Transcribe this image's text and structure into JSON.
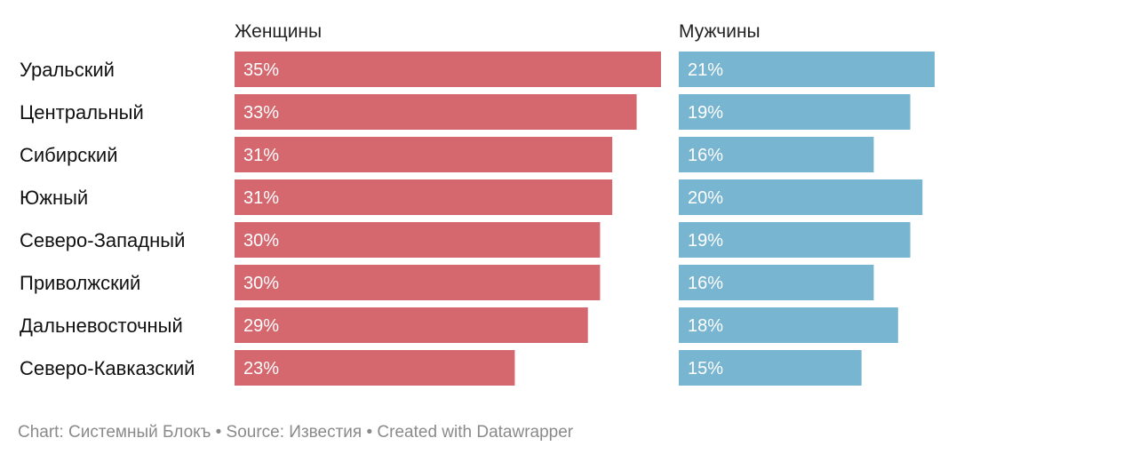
{
  "chart_data": {
    "type": "bar",
    "orientation": "horizontal",
    "categories": [
      "Уральский",
      "Центральный",
      "Сибирский",
      "Южный",
      "Северо-Западный",
      "Приволжский",
      "Дальневосточный",
      "Северо-Кавказский"
    ],
    "series": [
      {
        "name": "Женщины",
        "values": [
          35,
          33,
          31,
          31,
          30,
          30,
          29,
          23
        ],
        "labels": [
          "35%",
          "33%",
          "31%",
          "31%",
          "30%",
          "30%",
          "29%",
          "23%"
        ],
        "color": "#d5676e"
      },
      {
        "name": "Мужчины",
        "values": [
          21,
          19,
          16,
          20,
          19,
          16,
          18,
          15
        ],
        "labels": [
          "21%",
          "19%",
          "16%",
          "20%",
          "19%",
          "16%",
          "18%",
          "15%"
        ],
        "color": "#78b5d0"
      }
    ],
    "xlim": [
      0,
      35
    ],
    "grid": false,
    "legend": "none"
  },
  "footer": {
    "text": "Chart: Системный Блокъ • Source: Известия • Created with Datawrapper"
  }
}
